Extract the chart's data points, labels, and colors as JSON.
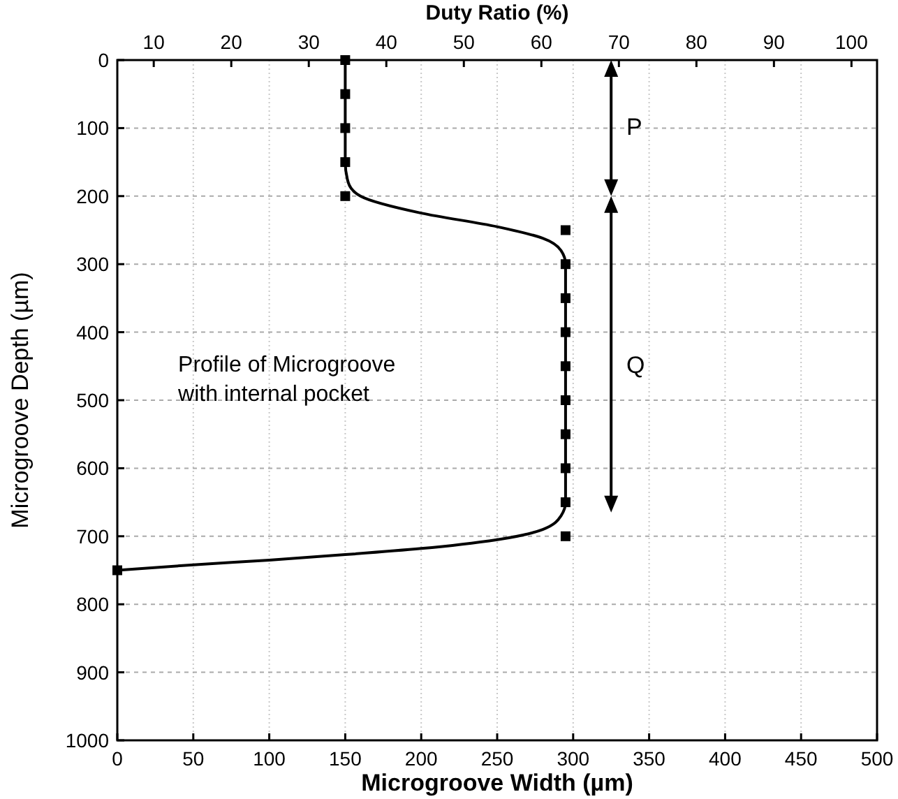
{
  "chart_data": {
    "type": "scatter",
    "xlabel": "Microgroove Width (µm)",
    "ylabel": "Microgroove Depth (µm)",
    "x2label": "Duty Ratio (%)",
    "xlim": [
      0,
      500
    ],
    "xticks": [
      0,
      50,
      100,
      150,
      200,
      250,
      300,
      350,
      400,
      450,
      500
    ],
    "x2lim": [
      5.3,
      103.3
    ],
    "x2ticks": [
      10,
      20,
      30,
      40,
      50,
      60,
      70,
      80,
      90,
      100
    ],
    "ylim": [
      1000,
      0
    ],
    "yticks": [
      0,
      100,
      200,
      300,
      400,
      500,
      600,
      700,
      800,
      900,
      1000
    ],
    "grid": true,
    "series": [
      {
        "marker": "square",
        "color": "#000000",
        "x": [
          150,
          150,
          150,
          150,
          150,
          295,
          295,
          295,
          295,
          295,
          295,
          295,
          295,
          295,
          295,
          0
        ],
        "values": [
          0,
          50,
          100,
          150,
          200,
          250,
          300,
          350,
          400,
          450,
          500,
          550,
          600,
          650,
          700,
          750
        ]
      },
      {
        "type": "line",
        "marker": "none",
        "color": "#000000",
        "x": [
          150,
          150,
          152,
          160,
          200,
          250,
          280,
          292,
          295,
          295,
          292,
          280,
          250,
          200,
          150,
          100,
          50,
          0
        ],
        "values": [
          0,
          150,
          180,
          200,
          225,
          245,
          262,
          280,
          300,
          650,
          670,
          690,
          705,
          718,
          727,
          735,
          742,
          750
        ]
      }
    ],
    "annotations": [
      "P",
      "Q",
      "Profile of Microgroove\nwith internal pocket"
    ]
  }
}
